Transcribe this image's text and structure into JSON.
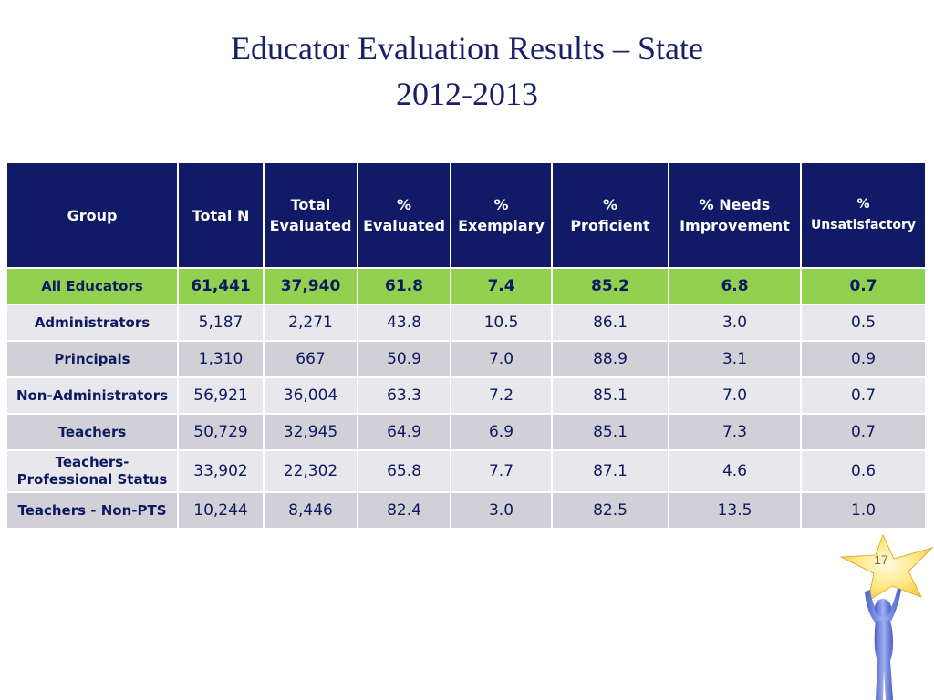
{
  "title": {
    "line1": "Educator Evaluation Results – State",
    "line2": "2012-2013"
  },
  "table": {
    "headers": {
      "group": "Group",
      "total_n": "Total N",
      "total_evaluated": [
        "Total",
        "Evaluated"
      ],
      "pct_evaluated": [
        "%",
        "Evaluated"
      ],
      "pct_exemplary": [
        "%",
        "Exemplary"
      ],
      "pct_proficient": [
        "%",
        "Proficient"
      ],
      "pct_needs_improvement": [
        "% Needs",
        "Improvement"
      ],
      "pct_unsatisfactory": [
        "%",
        "Unsatisfactory"
      ]
    },
    "rows": [
      {
        "group": [
          "All Educators"
        ],
        "total_n": "61,441",
        "total_evaluated": "37,940",
        "pct_evaluated": "61.8",
        "pct_exemplary": "7.4",
        "pct_proficient": "85.2",
        "pct_needs_improvement": "6.8",
        "pct_unsatisfactory": "0.7"
      },
      {
        "group": [
          "Administrators"
        ],
        "total_n": "5,187",
        "total_evaluated": "2,271",
        "pct_evaluated": "43.8",
        "pct_exemplary": "10.5",
        "pct_proficient": "86.1",
        "pct_needs_improvement": "3.0",
        "pct_unsatisfactory": "0.5"
      },
      {
        "group": [
          "Principals"
        ],
        "total_n": "1,310",
        "total_evaluated": "667",
        "pct_evaluated": "50.9",
        "pct_exemplary": "7.0",
        "pct_proficient": "88.9",
        "pct_needs_improvement": "3.1",
        "pct_unsatisfactory": "0.9"
      },
      {
        "group": [
          "Non-Administrators"
        ],
        "total_n": "56,921",
        "total_evaluated": "36,004",
        "pct_evaluated": "63.3",
        "pct_exemplary": "7.2",
        "pct_proficient": "85.1",
        "pct_needs_improvement": "7.0",
        "pct_unsatisfactory": "0.7"
      },
      {
        "group": [
          "Teachers"
        ],
        "total_n": "50,729",
        "total_evaluated": "32,945",
        "pct_evaluated": "64.9",
        "pct_exemplary": "6.9",
        "pct_proficient": "85.1",
        "pct_needs_improvement": "7.3",
        "pct_unsatisfactory": "0.7"
      },
      {
        "group": [
          "Teachers-",
          "Professional Status"
        ],
        "total_n": "33,902",
        "total_evaluated": "22,302",
        "pct_evaluated": "65.8",
        "pct_exemplary": "7.7",
        "pct_proficient": "87.1",
        "pct_needs_improvement": "4.6",
        "pct_unsatisfactory": "0.6"
      },
      {
        "group": [
          "Teachers - Non-PTS"
        ],
        "total_n": "10,244",
        "total_evaluated": "8,446",
        "pct_evaluated": "82.4",
        "pct_exemplary": "3.0",
        "pct_proficient": "82.5",
        "pct_needs_improvement": "13.5",
        "pct_unsatisfactory": "1.0"
      }
    ]
  },
  "page_number": "17",
  "decoration": {
    "icon": "star-figure-icon",
    "star_color": "#ffe066",
    "figure_color": "#6a7fd8"
  },
  "colors": {
    "header_bg": "#111a66",
    "total_row_bg": "#92d050",
    "row_light": "#e8e8ec",
    "row_dark": "#d0d0d6",
    "title": "#1a2068"
  }
}
